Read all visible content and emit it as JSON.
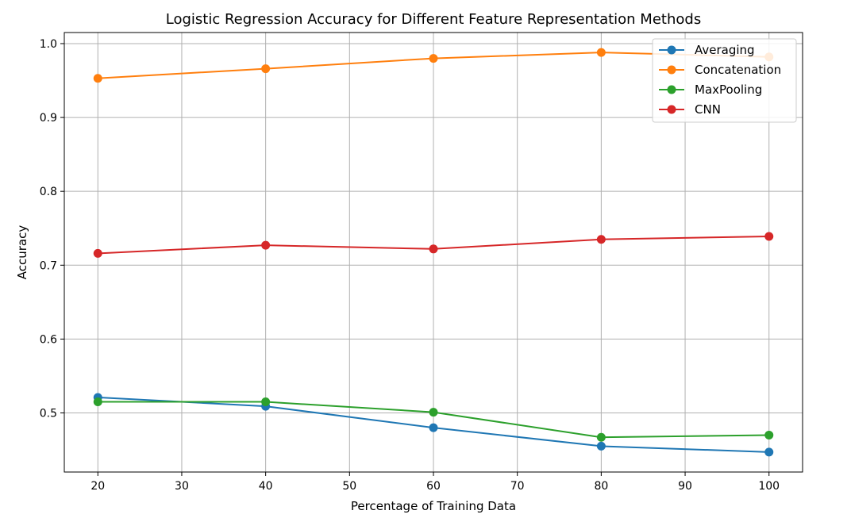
{
  "chart_data": {
    "type": "line",
    "title": "Logistic Regression Accuracy for Different Feature Representation Methods",
    "xlabel": "Percentage of Training Data",
    "ylabel": "Accuracy",
    "x": [
      20,
      40,
      60,
      80,
      100
    ],
    "xlim": [
      16,
      104
    ],
    "ylim": [
      0.42,
      1.015
    ],
    "xticks": [
      20,
      30,
      40,
      50,
      60,
      70,
      80,
      90,
      100
    ],
    "yticks": [
      0.5,
      0.6,
      0.7,
      0.8,
      0.9,
      1.0
    ],
    "ytick_labels": [
      "0.5",
      "0.6",
      "0.7",
      "0.8",
      "0.9",
      "1.0"
    ],
    "grid": true,
    "legend_position": "top-right",
    "series": [
      {
        "name": "Averaging",
        "color": "#1f77b4",
        "values": [
          0.521,
          0.509,
          0.48,
          0.455,
          0.447
        ]
      },
      {
        "name": "Concatenation",
        "color": "#ff7f0e",
        "values": [
          0.953,
          0.966,
          0.98,
          0.988,
          0.982
        ]
      },
      {
        "name": "MaxPooling",
        "color": "#2ca02c",
        "values": [
          0.515,
          0.515,
          0.501,
          0.467,
          0.47
        ]
      },
      {
        "name": "CNN",
        "color": "#d62728",
        "values": [
          0.716,
          0.727,
          0.722,
          0.735,
          0.739
        ]
      }
    ]
  }
}
